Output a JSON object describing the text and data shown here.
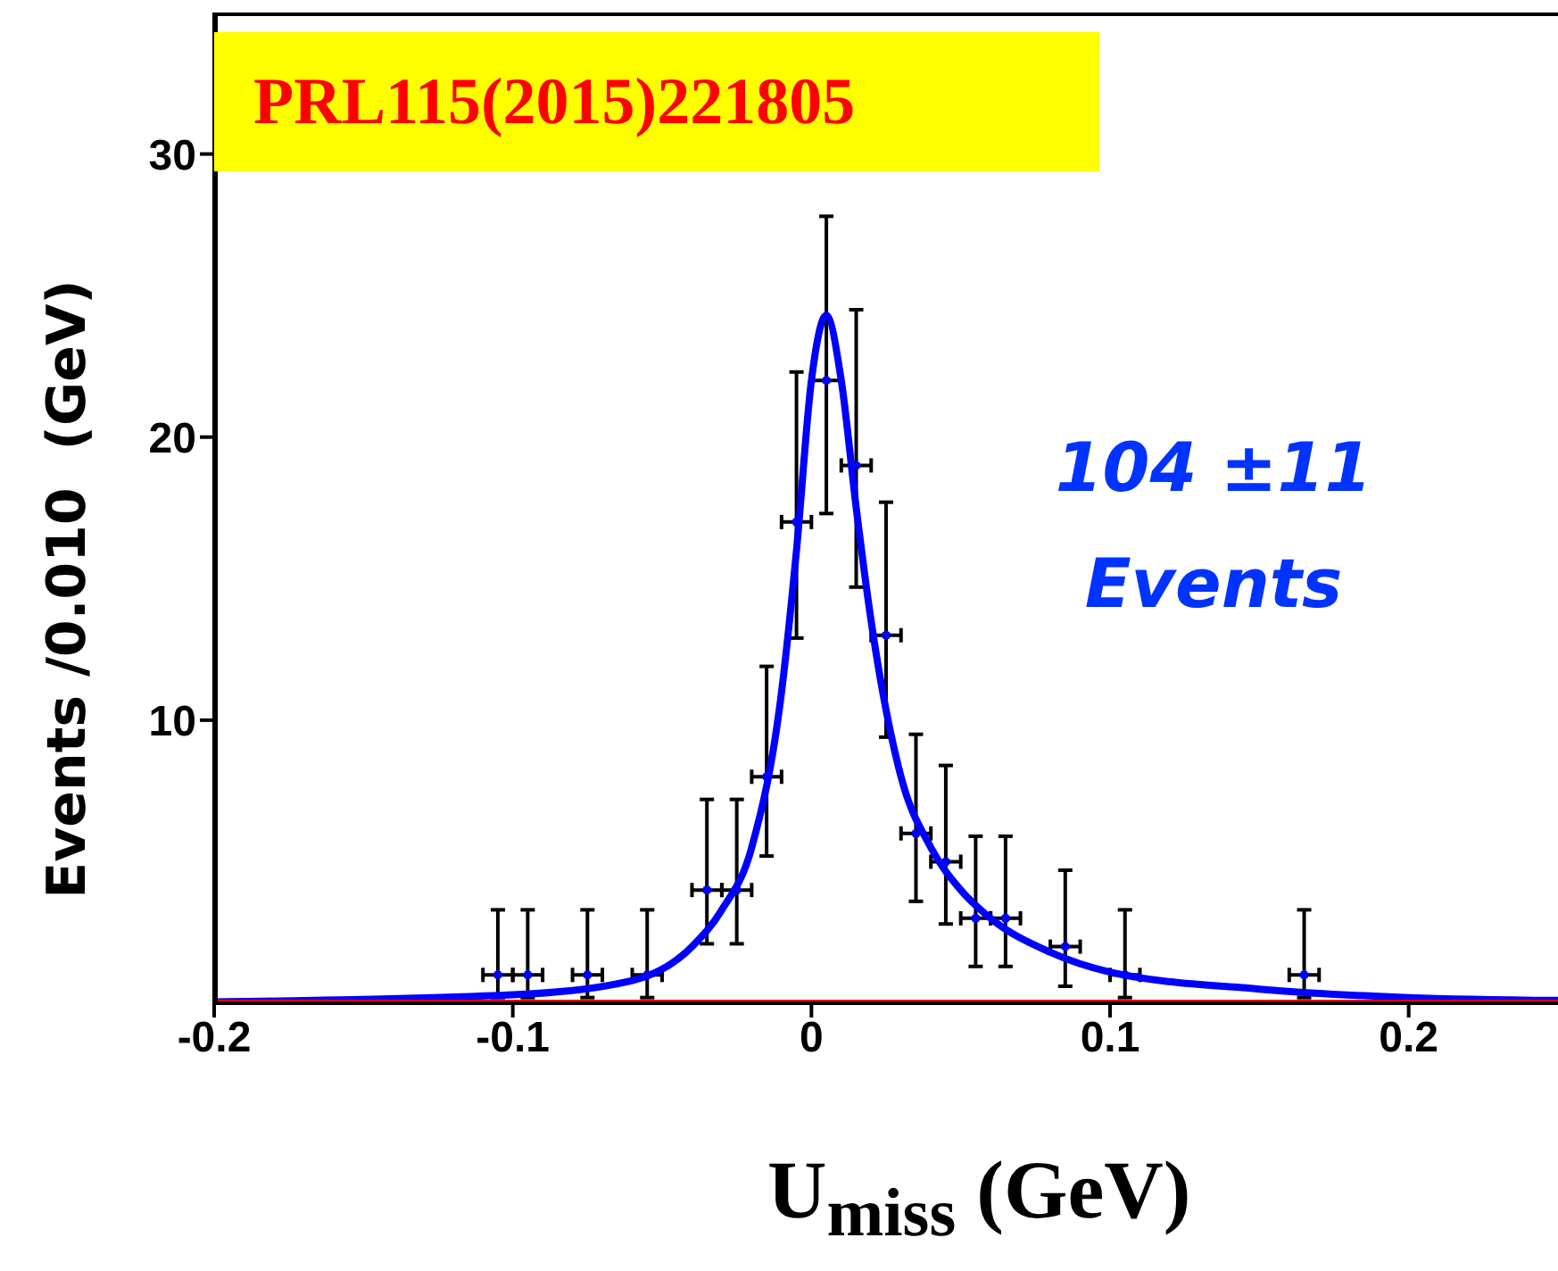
{
  "chart_data": {
    "type": "scatter",
    "xlabel": "U$_{miss}$ (GeV)",
    "ylabel": "Events /0.010  (GeV)",
    "xlim": [
      -0.2,
      0.25
    ],
    "xticks": [
      -0.2,
      -0.1,
      0,
      0.1,
      0.2
    ],
    "ylim": [
      0,
      35
    ],
    "yticks": [
      10,
      20,
      30
    ],
    "grid": false,
    "legend": false,
    "annotations": [
      "PRL115(2015)221805",
      "104 ±11",
      "Events"
    ],
    "series": [
      {
        "color": "#0000ff",
        "marker": "circle",
        "x": [
          -0.105,
          -0.095,
          -0.075,
          -0.055,
          -0.035,
          -0.025,
          -0.015,
          -0.005,
          0.005,
          0.015,
          0.025,
          0.035,
          0.045,
          0.055,
          0.065,
          0.085,
          0.105,
          0.165
        ],
        "values": [
          1,
          1,
          1,
          1,
          4,
          4,
          8,
          17,
          22,
          19,
          13,
          6,
          5,
          3,
          3,
          2,
          1,
          1
        ],
        "errors": [
          [
            0.2,
            3.3
          ],
          [
            0.2,
            3.3
          ],
          [
            0.2,
            3.3
          ],
          [
            0.2,
            3.3
          ],
          [
            2.1,
            7.2
          ],
          [
            2.1,
            7.2
          ],
          [
            5.2,
            11.9
          ],
          [
            12.9,
            22.3
          ],
          [
            17.3,
            27.8
          ],
          [
            14.7,
            24.5
          ],
          [
            9.4,
            17.7
          ],
          [
            3.6,
            9.5
          ],
          [
            2.8,
            8.4
          ],
          [
            1.3,
            5.9
          ],
          [
            1.3,
            5.9
          ],
          [
            0.6,
            4.7
          ],
          [
            0.2,
            3.3
          ],
          [
            0.2,
            3.3
          ]
        ],
        "xerrors": [
          0.005,
          0.005,
          0.005,
          0.005,
          0.005,
          0.005,
          0.005,
          0.005,
          0.005,
          0.005,
          0.005,
          0.005,
          0.005,
          0.005,
          0.005,
          0.005,
          0.005,
          0.005
        ]
      },
      {
        "type": "line",
        "color": "#0000ff",
        "x": [
          -0.2,
          -0.1,
          -0.06,
          -0.04,
          -0.03,
          -0.02,
          -0.01,
          -0.005,
          0,
          0.005,
          0.01,
          0.015,
          0.02,
          0.03,
          0.04,
          0.05,
          0.06,
          0.08,
          0.1,
          0.15,
          0.2,
          0.25
        ],
        "values": [
          0.05,
          0.3,
          0.8,
          2,
          3.3,
          5.5,
          11,
          16,
          22,
          24.3,
          22,
          17.5,
          13.5,
          8,
          5.5,
          4,
          3,
          1.8,
          1.1,
          0.5,
          0.2,
          0.1
        ]
      },
      {
        "type": "line",
        "color": "#ff0000",
        "x": [
          -0.2,
          0.25
        ],
        "values": [
          0,
          0
        ]
      }
    ]
  }
}
